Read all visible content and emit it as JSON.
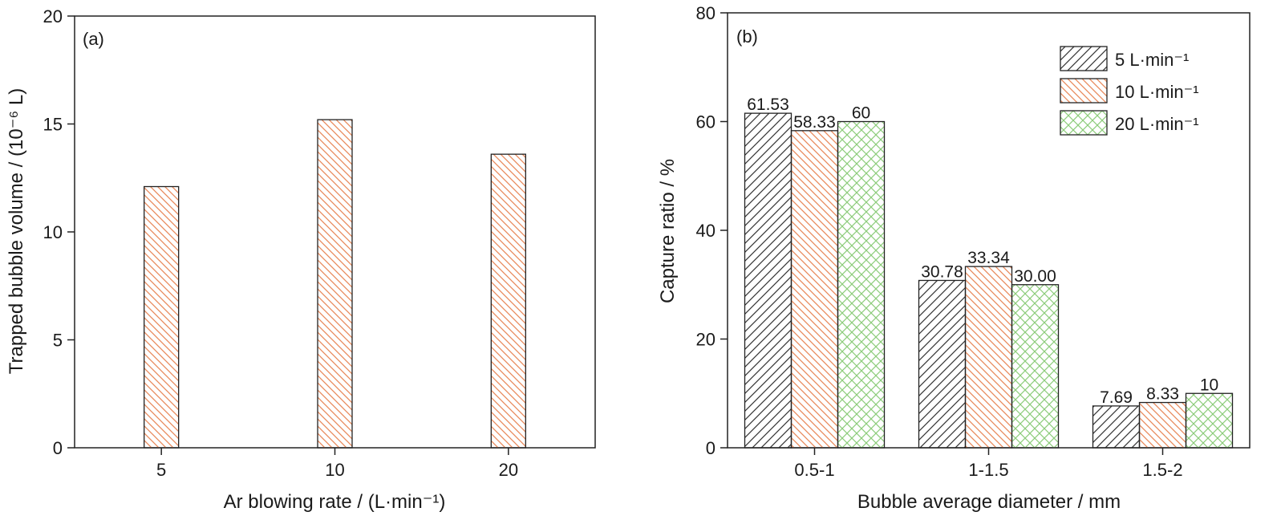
{
  "chart_data": [
    {
      "type": "bar",
      "panel_label": "(a)",
      "categories": [
        "5",
        "10",
        "20"
      ],
      "series": [
        {
          "values": [
            12.1,
            15.2,
            13.6
          ],
          "pattern": "hatch-back",
          "color": "#e8895a"
        }
      ],
      "title": "",
      "xlabel": "Ar blowing rate / (L·min⁻¹)",
      "ylabel": "Trapped bubble volume / (10⁻⁶ L)",
      "ylim": [
        0,
        20
      ],
      "yticks": [
        0,
        5,
        10,
        15,
        20
      ],
      "grid": false,
      "legend": "none"
    },
    {
      "type": "bar",
      "panel_label": "(b)",
      "categories": [
        "0.5-1",
        "1-1.5",
        "1.5-2"
      ],
      "series": [
        {
          "name": "5 L·min⁻¹",
          "values": [
            61.53,
            30.78,
            7.69
          ],
          "labels": [
            "61.53",
            "30.78",
            "7.69"
          ],
          "pattern": "hatch-forward",
          "color": "#333333"
        },
        {
          "name": "10 L·min⁻¹",
          "values": [
            58.33,
            33.34,
            8.33
          ],
          "labels": [
            "58.33",
            "33.34",
            "8.33"
          ],
          "pattern": "hatch-back",
          "color": "#e8895a"
        },
        {
          "name": "20 L·min⁻¹",
          "values": [
            60,
            30.0,
            10
          ],
          "labels": [
            "60",
            "30.00",
            "10"
          ],
          "pattern": "crosshatch",
          "color": "#8ccc7a"
        }
      ],
      "title": "",
      "xlabel": "Bubble average diameter / mm",
      "ylabel": "Capture ratio / %",
      "ylim": [
        0,
        80
      ],
      "yticks": [
        0,
        20,
        40,
        60,
        80
      ],
      "grid": false,
      "legend": "top-right"
    }
  ]
}
